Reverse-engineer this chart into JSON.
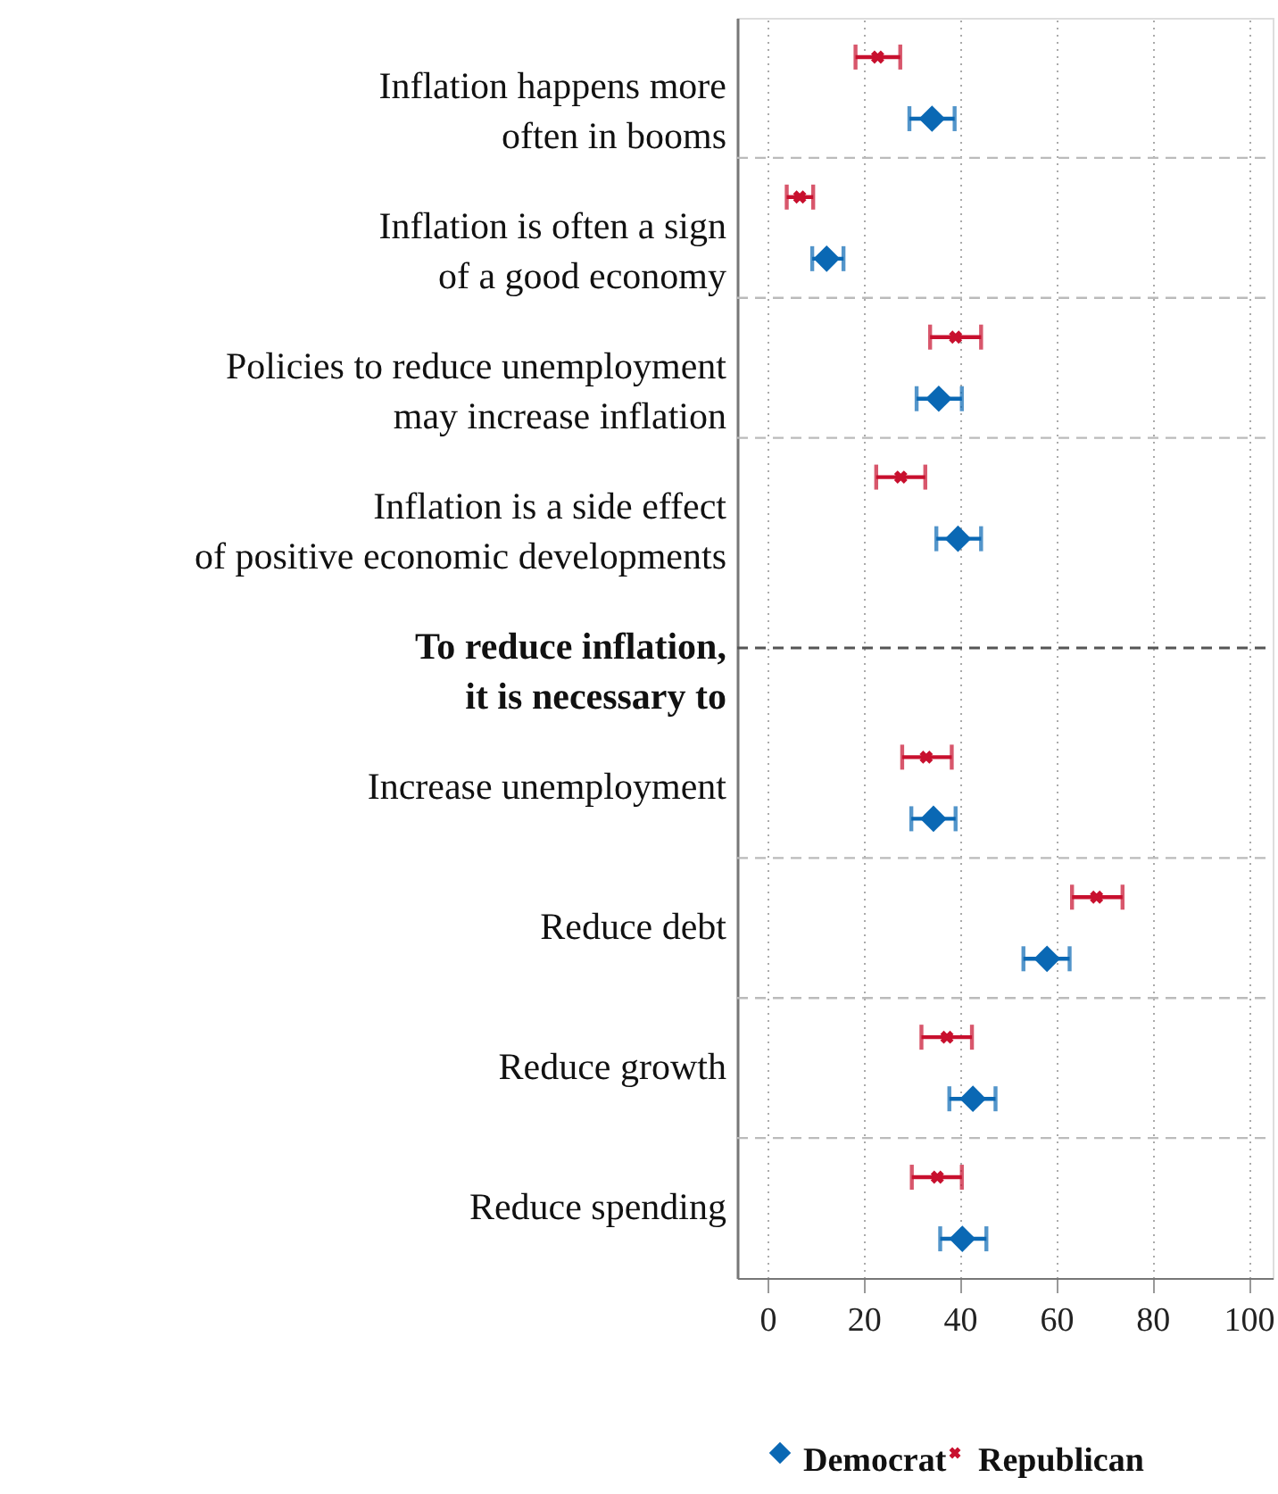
{
  "chart_data": {
    "type": "scatter",
    "orientation": "horizontal",
    "categories": [
      "Inflation happens more\noften in booms",
      "Inflation is often a sign\nof a good economy",
      "Policies to reduce unemployment\nmay increase inflation",
      "Inflation is a side effect\nof positive economic developments",
      "To reduce inflation,\nit is necessary to",
      "Increase unemployment",
      "Reduce debt",
      "Reduce growth",
      "Reduce spending"
    ],
    "series": [
      {
        "name": "Republican",
        "color": "#c8102e",
        "marker": "cross",
        "values": [
          22.9,
          6.7,
          39.1,
          27.7,
          null,
          33.0,
          68.4,
          37.3,
          35.3
        ],
        "errors": [
          [
            18.3,
            27.6
          ],
          [
            4.0,
            9.5
          ],
          [
            33.8,
            44.4
          ],
          [
            22.6,
            32.8
          ],
          null,
          [
            28.0,
            38.3
          ],
          [
            63.3,
            73.8
          ],
          [
            32.0,
            42.5
          ],
          [
            30.0,
            40.4
          ]
        ]
      },
      {
        "name": "Democrat",
        "color": "#0a68b4",
        "marker": "diamond",
        "values": [
          34.2,
          12.3,
          35.6,
          39.6,
          null,
          34.5,
          58.1,
          42.7,
          40.5
        ],
        "errors": [
          [
            29.5,
            38.9
          ],
          [
            9.3,
            15.8
          ],
          [
            31.0,
            40.4
          ],
          [
            35.1,
            44.4
          ],
          null,
          [
            29.9,
            39.1
          ],
          [
            53.2,
            62.8
          ],
          [
            37.8,
            47.4
          ],
          [
            35.9,
            45.5
          ]
        ]
      }
    ],
    "ref_lines": [
      {
        "axis": "y",
        "value": "To reduce inflation,\nit is necessary to",
        "color": "#555555",
        "line_style": "dashed"
      }
    ],
    "xlim": [
      -6.3,
      105
    ],
    "xticks": [
      0,
      20,
      40,
      60,
      80,
      100
    ],
    "grid": "x",
    "legend": "bottom"
  }
}
